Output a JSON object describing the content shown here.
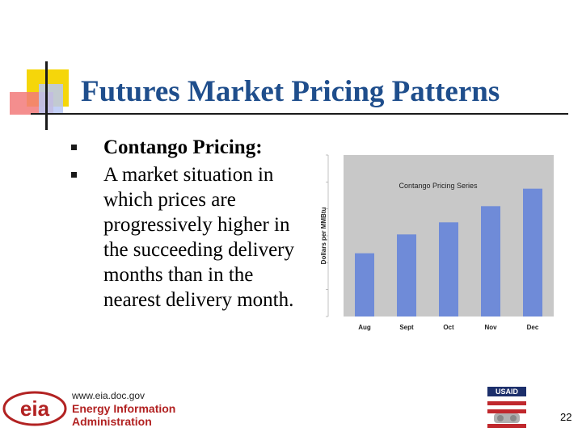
{
  "slide": {
    "title": "Futures Market Pricing Patterns",
    "page_number": "22"
  },
  "bullets": [
    {
      "title": "Contango Pricing:"
    },
    {
      "text": "A market situation in which prices are progressively higher in the succeeding delivery months than in the nearest delivery month."
    }
  ],
  "footer": {
    "url": "www.eia.doc.gov",
    "org_line1": "Energy Information",
    "org_line2": "Administration",
    "logo_text": "eia",
    "partner_logo": "USAID"
  },
  "chart_data": {
    "type": "bar",
    "title": "Contango Pricing Series",
    "ylabel": "Dollars per MMBtu",
    "categories": [
      "Aug",
      "Sept",
      "Oct",
      "Nov",
      "Dec"
    ],
    "values": [
      2.35,
      3.05,
      3.5,
      4.1,
      4.75
    ],
    "ylim": [
      0,
      6
    ],
    "grid": false,
    "colors": {
      "bar": "#6f8bd8",
      "plot_bg": "#c8c8c8"
    }
  }
}
